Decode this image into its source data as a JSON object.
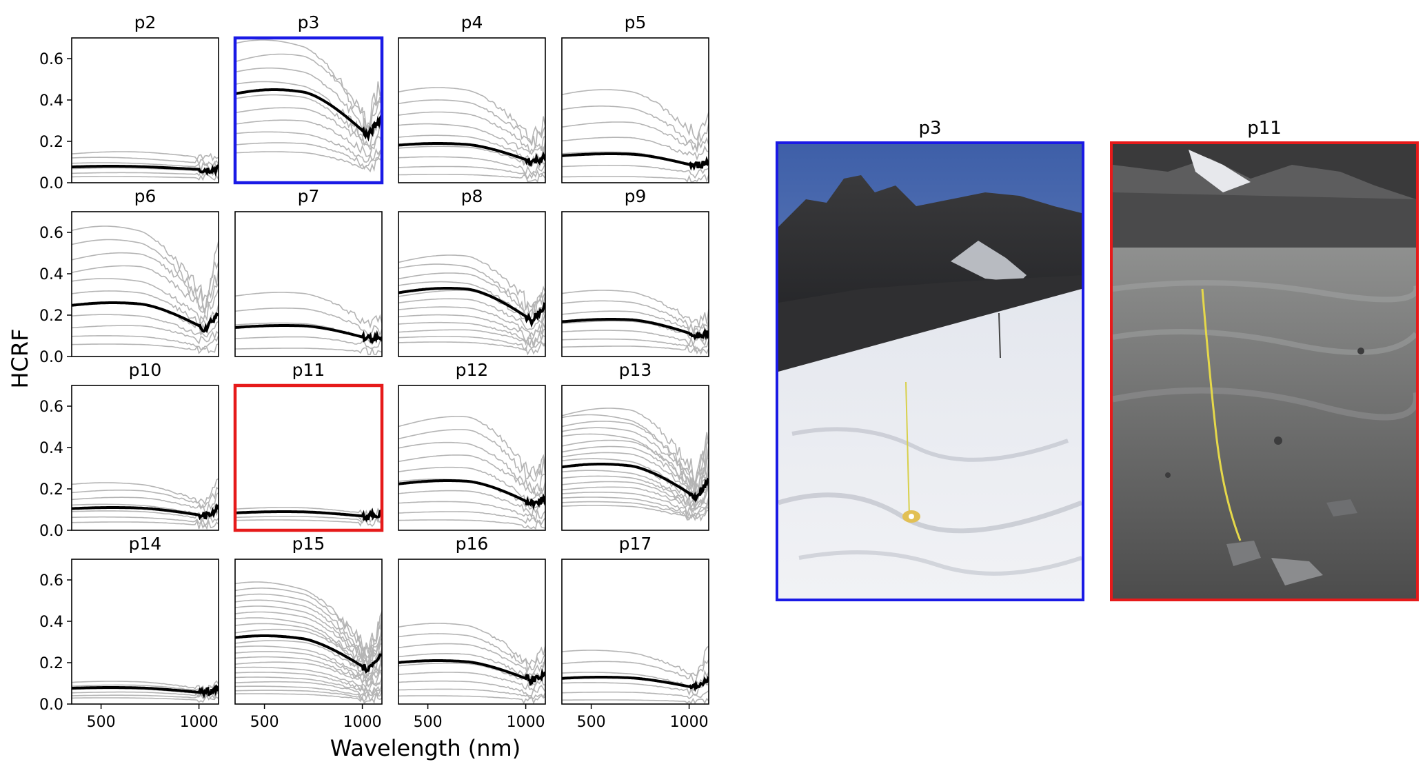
{
  "figure": {
    "ylabel": "HCRF",
    "xlabel": "Wavelength (nm)",
    "colors": {
      "frame_default": "#000000",
      "highlight_p3": "#1a1ae6",
      "highlight_p11": "#e61a1a",
      "mean_line": "#000000",
      "individual_line": "#b4b4b4"
    }
  },
  "chart_data": {
    "type": "line",
    "layout": "4x4 small multiples sharing axes",
    "x_tick_labels": [
      "500",
      "1000"
    ],
    "y_tick_labels": [
      "0.0",
      "0.2",
      "0.4",
      "0.6"
    ],
    "xlim": [
      350,
      1100
    ],
    "ylim": [
      0,
      0.7
    ],
    "xticks": [
      500,
      1000
    ],
    "yticks": [
      0.0,
      0.2,
      0.4,
      0.6
    ],
    "grid": false,
    "legend": "none",
    "x": [
      350,
      400,
      450,
      500,
      550,
      600,
      650,
      700,
      750,
      800,
      850,
      900,
      950,
      1000,
      1050,
      1080
    ],
    "panels": [
      {
        "title": "p2",
        "highlight": "none",
        "mean": 0.08,
        "peak": 550,
        "n": 6,
        "min": 0.03,
        "max": 0.15,
        "dip": 0.1,
        "end": 0.25
      },
      {
        "title": "p3",
        "highlight": "blue",
        "mean": 0.45,
        "peak": 550,
        "n": 10,
        "min": 0.15,
        "max": 0.69,
        "dip": 0.72,
        "end": 0.9
      },
      {
        "title": "p4",
        "highlight": "none",
        "mean": 0.19,
        "peak": 550,
        "n": 9,
        "min": 0.04,
        "max": 0.46,
        "dip": 0.65,
        "end": 0.6
      },
      {
        "title": "p5",
        "highlight": "none",
        "mean": 0.14,
        "peak": 600,
        "n": 7,
        "min": 0.03,
        "max": 0.45,
        "dip": 0.6,
        "end": 0.7
      },
      {
        "title": "p6",
        "highlight": "none",
        "mean": 0.26,
        "peak": 560,
        "n": 11,
        "min": 0.06,
        "max": 0.63,
        "dip": 0.7,
        "end": 1.1
      },
      {
        "title": "p7",
        "highlight": "none",
        "mean": 0.15,
        "peak": 600,
        "n": 5,
        "min": 0.04,
        "max": 0.31,
        "dip": 0.6,
        "end": 0.4
      },
      {
        "title": "p8",
        "highlight": "none",
        "mean": 0.33,
        "peak": 600,
        "n": 12,
        "min": 0.07,
        "max": 0.49,
        "dip": 0.7,
        "end": 0.9
      },
      {
        "title": "p9",
        "highlight": "none",
        "mean": 0.18,
        "peak": 600,
        "n": 7,
        "min": 0.05,
        "max": 0.32,
        "dip": 0.6,
        "end": 0.5
      },
      {
        "title": "p10",
        "highlight": "none",
        "mean": 0.11,
        "peak": 560,
        "n": 7,
        "min": 0.04,
        "max": 0.23,
        "dip": 0.45,
        "end": 1.1
      },
      {
        "title": "p11",
        "highlight": "red",
        "mean": 0.09,
        "peak": 600,
        "n": 4,
        "min": 0.05,
        "max": 0.11,
        "dip": 0.25,
        "end": 0.6
      },
      {
        "title": "p12",
        "highlight": "none",
        "mean": 0.24,
        "peak": 600,
        "n": 10,
        "min": 0.05,
        "max": 0.55,
        "dip": 0.7,
        "end": 0.6
      },
      {
        "title": "p13",
        "highlight": "none",
        "mean": 0.32,
        "peak": 550,
        "n": 18,
        "min": 0.12,
        "max": 0.59,
        "dip": 0.72,
        "end": 1.0
      },
      {
        "title": "p14",
        "highlight": "none",
        "mean": 0.08,
        "peak": 550,
        "n": 6,
        "min": 0.03,
        "max": 0.11,
        "dip": 0.35,
        "end": 0.9
      },
      {
        "title": "p15",
        "highlight": "none",
        "mean": 0.33,
        "peak": 500,
        "n": 22,
        "min": 0.05,
        "max": 0.59,
        "dip": 0.7,
        "end": 0.9
      },
      {
        "title": "p16",
        "highlight": "none",
        "mean": 0.21,
        "peak": 550,
        "n": 9,
        "min": 0.04,
        "max": 0.39,
        "dip": 0.65,
        "end": 0.7
      },
      {
        "title": "p17",
        "highlight": "none",
        "mean": 0.13,
        "peak": 550,
        "n": 6,
        "min": 0.02,
        "max": 0.26,
        "dip": 0.5,
        "end": 1.2
      }
    ]
  },
  "photos": [
    {
      "title": "p3",
      "surface": "snow",
      "frame_color": "#1a1ae6"
    },
    {
      "title": "p11",
      "surface": "debris",
      "frame_color": "#e61a1a"
    }
  ]
}
